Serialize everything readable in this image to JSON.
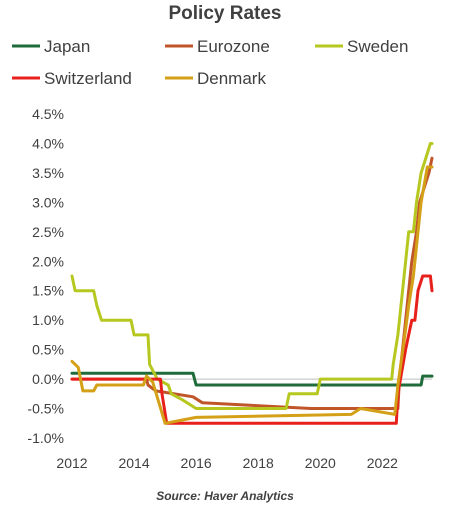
{
  "chart_data": {
    "type": "line",
    "title": "Policy Rates",
    "source": "Source: Haver Analytics",
    "xlabel": "",
    "ylabel": "",
    "xlim": [
      2012,
      2023.6
    ],
    "ylim": [
      -1.0,
      4.5
    ],
    "x_ticks": [
      "2012",
      "2014",
      "2016",
      "2018",
      "2020",
      "2022"
    ],
    "y_ticks": [
      "4.5%",
      "4.0%",
      "3.5%",
      "3.0%",
      "2.5%",
      "2.0%",
      "1.5%",
      "1.0%",
      "0.5%",
      "0.0%",
      "-0.5%",
      "-1.0%"
    ],
    "legend_position": "top",
    "series": [
      {
        "name": "Japan",
        "color": "#1f6b3a",
        "points": [
          [
            2012,
            0.1
          ],
          [
            2013.2,
            0.1
          ],
          [
            2015.9,
            0.1
          ],
          [
            2016.0,
            -0.1
          ],
          [
            2023.25,
            -0.1
          ],
          [
            2023.3,
            0.05
          ],
          [
            2023.6,
            0.05
          ]
        ]
      },
      {
        "name": "Eurozone",
        "color": "#c0552a",
        "points": [
          [
            2012,
            0.0
          ],
          [
            2014.4,
            0.0
          ],
          [
            2014.45,
            -0.1
          ],
          [
            2014.7,
            -0.2
          ],
          [
            2015.9,
            -0.3
          ],
          [
            2016.2,
            -0.4
          ],
          [
            2019.7,
            -0.5
          ],
          [
            2022.5,
            -0.5
          ],
          [
            2022.55,
            0.0
          ],
          [
            2022.7,
            0.75
          ],
          [
            2022.85,
            1.5
          ],
          [
            2022.95,
            2.0
          ],
          [
            2023.1,
            2.5
          ],
          [
            2023.2,
            3.0
          ],
          [
            2023.35,
            3.25
          ],
          [
            2023.5,
            3.5
          ],
          [
            2023.6,
            3.75
          ]
        ]
      },
      {
        "name": "Sweden",
        "color": "#b6c81f",
        "points": [
          [
            2012,
            1.75
          ],
          [
            2012.1,
            1.5
          ],
          [
            2012.7,
            1.5
          ],
          [
            2012.8,
            1.25
          ],
          [
            2012.95,
            1.0
          ],
          [
            2013.9,
            1.0
          ],
          [
            2014.0,
            0.75
          ],
          [
            2014.45,
            0.75
          ],
          [
            2014.5,
            0.25
          ],
          [
            2014.75,
            0.0
          ],
          [
            2015.1,
            -0.1
          ],
          [
            2015.2,
            -0.25
          ],
          [
            2015.55,
            -0.35
          ],
          [
            2016.0,
            -0.5
          ],
          [
            2018.9,
            -0.5
          ],
          [
            2019.0,
            -0.25
          ],
          [
            2019.9,
            -0.25
          ],
          [
            2020.0,
            0.0
          ],
          [
            2022.3,
            0.0
          ],
          [
            2022.35,
            0.25
          ],
          [
            2022.5,
            0.75
          ],
          [
            2022.7,
            1.75
          ],
          [
            2022.85,
            2.5
          ],
          [
            2023.0,
            2.5
          ],
          [
            2023.1,
            3.0
          ],
          [
            2023.25,
            3.5
          ],
          [
            2023.4,
            3.75
          ],
          [
            2023.55,
            4.0
          ],
          [
            2023.6,
            4.0
          ]
        ]
      },
      {
        "name": "Switzerland",
        "color": "#e8201b",
        "points": [
          [
            2012,
            0.0
          ],
          [
            2014.85,
            0.0
          ],
          [
            2014.9,
            -0.25
          ],
          [
            2015.05,
            -0.75
          ],
          [
            2022.45,
            -0.75
          ],
          [
            2022.5,
            -0.25
          ],
          [
            2022.75,
            0.5
          ],
          [
            2022.95,
            1.0
          ],
          [
            2023.05,
            1.0
          ],
          [
            2023.15,
            1.5
          ],
          [
            2023.3,
            1.75
          ],
          [
            2023.55,
            1.75
          ],
          [
            2023.6,
            1.5
          ]
        ]
      },
      {
        "name": "Denmark",
        "color": "#d4a017",
        "points": [
          [
            2012,
            0.3
          ],
          [
            2012.2,
            0.2
          ],
          [
            2012.35,
            -0.2
          ],
          [
            2012.7,
            -0.2
          ],
          [
            2012.8,
            -0.1
          ],
          [
            2014.3,
            -0.1
          ],
          [
            2014.4,
            0.05
          ],
          [
            2014.6,
            -0.05
          ],
          [
            2015.0,
            -0.75
          ],
          [
            2016.0,
            -0.65
          ],
          [
            2021.0,
            -0.6
          ],
          [
            2021.3,
            -0.5
          ],
          [
            2022.4,
            -0.6
          ],
          [
            2022.5,
            -0.1
          ],
          [
            2022.7,
            0.65
          ],
          [
            2022.85,
            1.25
          ],
          [
            2023.0,
            1.75
          ],
          [
            2023.15,
            2.5
          ],
          [
            2023.25,
            3.0
          ],
          [
            2023.35,
            3.3
          ],
          [
            2023.45,
            3.6
          ],
          [
            2023.6,
            3.6
          ]
        ]
      }
    ]
  }
}
